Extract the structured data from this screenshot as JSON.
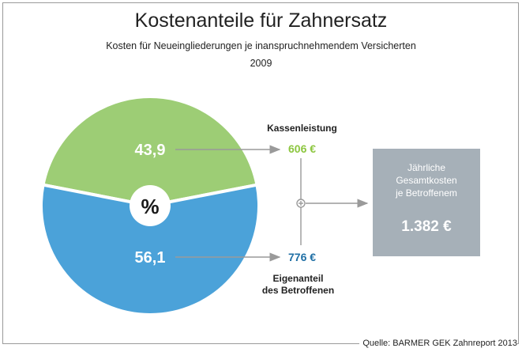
{
  "title": "Kostenanteile für Zahnersatz",
  "subtitle": "Kosten für Neueingliederungen je inanspruchnehmendem Versicherten",
  "year": "2009",
  "center_label": "%",
  "top": {
    "label": "Kassenleistung",
    "value": "606 €"
  },
  "bottom": {
    "label_line1": "Eigenanteil",
    "label_line2": "des Betroffenen",
    "value": "776 €"
  },
  "total": {
    "caption_line1": "Jährliche",
    "caption_line2": "Gesamtkosten",
    "caption_line3": "je Betroffenem",
    "value": "1.382 €"
  },
  "source": "Quelle: BARMER GEK Zahnreport 2013",
  "colors": {
    "kassenleistung": "#9dcd75",
    "eigenanteil": "#4ba2d9",
    "total_box": "#a6b0b8",
    "arrow": "#9a9a9a"
  },
  "chart_data": {
    "type": "pie",
    "slices": [
      {
        "label": "Kassenleistung",
        "value": 43.9,
        "display": "43,9",
        "amount_label": "606 €",
        "color": "#9dcd75"
      },
      {
        "label": "Eigenanteil des Betroffenen",
        "value": 56.1,
        "display": "56,1",
        "amount_label": "776 €",
        "color": "#4ba2d9"
      }
    ],
    "unit": "%",
    "total_label": "1.382 €"
  }
}
